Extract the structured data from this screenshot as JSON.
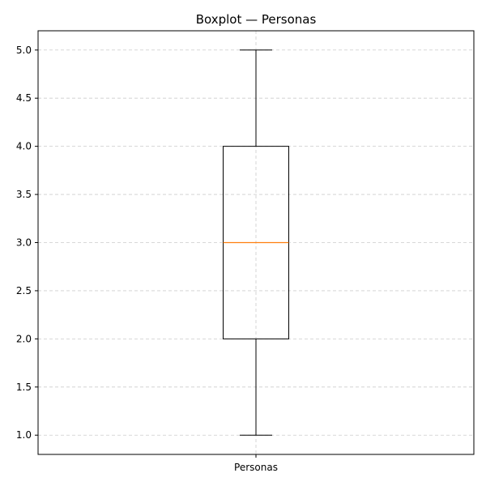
{
  "chart_data": {
    "type": "box",
    "title": "Boxplot — Personas",
    "xlabel": "",
    "ylabel": "",
    "categories": [
      "Personas"
    ],
    "ylim": [
      0.8,
      5.2
    ],
    "yticks": [
      1.0,
      1.5,
      2.0,
      2.5,
      3.0,
      3.5,
      4.0,
      4.5,
      5.0
    ],
    "ytick_labels": [
      "1.0",
      "1.5",
      "2.0",
      "2.5",
      "3.0",
      "3.5",
      "4.0",
      "4.5",
      "5.0"
    ],
    "grid": true,
    "boxes": [
      {
        "category": "Personas",
        "min": 1.0,
        "q1": 2.0,
        "median": 3.0,
        "q3": 4.0,
        "max": 5.0
      }
    ],
    "colors": {
      "box": "#000000",
      "median": "#ff7f0e",
      "grid": "#cccccc"
    }
  }
}
